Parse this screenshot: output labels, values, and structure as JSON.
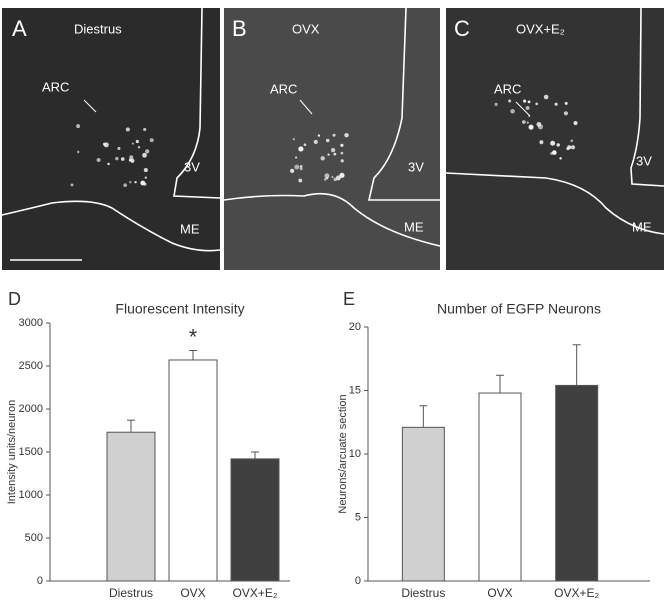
{
  "panels": [
    {
      "label": "A",
      "title": "Diestrus",
      "annotations": [
        "ARC",
        "3V",
        "ME"
      ]
    },
    {
      "label": "B",
      "title": "OVX",
      "annotations": [
        "ARC",
        "3V",
        "ME"
      ]
    },
    {
      "label": "C",
      "title": "OVX+E₂",
      "annotations": [
        "ARC",
        "3V",
        "ME"
      ]
    }
  ],
  "chart_data": [
    {
      "type": "bar",
      "panel_label": "D",
      "title": "Fluorescent Intensity",
      "y_label": "Intensity units/neuron",
      "categories": [
        "Diestrus",
        "OVX",
        "OVX+E₂"
      ],
      "values": [
        1730,
        2570,
        1420
      ],
      "errors": [
        140,
        110,
        80
      ],
      "colors": [
        "#d0d0d0",
        "#ffffff",
        "#404040"
      ],
      "annotations": [
        {
          "text": "*",
          "category": "OVX"
        }
      ],
      "ylim": [
        0,
        3000
      ],
      "yticks": [
        0,
        500,
        1000,
        1500,
        2000,
        2500,
        3000
      ]
    },
    {
      "type": "bar",
      "panel_label": "E",
      "title": "Number of EGFP Neurons",
      "y_label": "Neurons/arcuate section",
      "categories": [
        "Diestrus",
        "OVX",
        "OVX+E₂"
      ],
      "values": [
        12.1,
        14.8,
        15.4
      ],
      "errors": [
        1.7,
        1.4,
        3.2
      ],
      "colors": [
        "#d0d0d0",
        "#ffffff",
        "#404040"
      ],
      "ylim": [
        0,
        20
      ],
      "yticks": [
        0,
        5,
        10,
        15,
        20
      ]
    }
  ]
}
